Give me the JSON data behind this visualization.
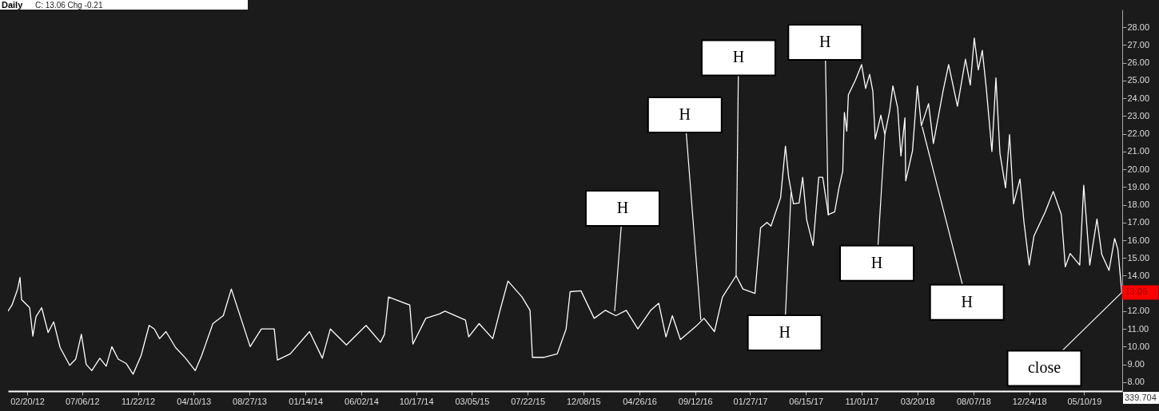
{
  "chart_data": {
    "type": "line",
    "title": "Daily",
    "subtitle": "C: 13.06  Chg -0.21",
    "x": [
      "2012-01-03",
      "2012-01-13",
      "2012-01-27",
      "2012-02-02",
      "2012-02-06",
      "2012-02-26",
      "2012-03-05",
      "2012-03-13",
      "2012-03-27",
      "2012-04-12",
      "2012-04-26",
      "2012-05-12",
      "2012-06-05",
      "2012-06-20",
      "2012-07-04",
      "2012-07-16",
      "2012-07-30",
      "2012-08-19",
      "2012-09-04",
      "2012-09-18",
      "2012-10-04",
      "2012-10-24",
      "2012-11-10",
      "2012-11-30",
      "2012-12-20",
      "2013-01-02",
      "2013-01-15",
      "2013-01-31",
      "2013-02-24",
      "2013-03-21",
      "2013-04-14",
      "2013-04-30",
      "2013-05-28",
      "2013-06-23",
      "2013-07-13",
      "2013-08-06",
      "2013-08-29",
      "2013-09-26",
      "2013-10-28",
      "2013-11-05",
      "2013-12-07",
      "2014-01-24",
      "2014-02-25",
      "2014-03-17",
      "2014-04-26",
      "2014-06-14",
      "2014-07-20",
      "2014-07-30",
      "2014-08-09",
      "2014-10-01",
      "2014-10-09",
      "2014-11-10",
      "2014-12-14",
      "2014-12-28",
      "2015-02-17",
      "2015-02-25",
      "2015-03-23",
      "2015-04-26",
      "2015-05-16",
      "2015-06-03",
      "2015-07-08",
      "2015-07-28",
      "2015-08-03",
      "2015-08-31",
      "2015-10-04",
      "2015-10-26",
      "2015-11-05",
      "2015-12-02",
      "2016-01-04",
      "2016-02-01",
      "2016-02-27",
      "2016-03-24",
      "2016-04-22",
      "2016-05-24",
      "2016-06-13",
      "2016-07-01",
      "2016-07-17",
      "2016-08-06",
      "2016-09-14",
      "2016-10-04",
      "2016-10-30",
      "2016-11-19",
      "2016-12-23",
      "2017-01-09",
      "2017-02-08",
      "2017-02-22",
      "2017-03-10",
      "2017-03-20",
      "2017-04-13",
      "2017-04-25",
      "2017-05-03",
      "2017-05-15",
      "2017-05-29",
      "2017-06-07",
      "2017-06-17",
      "2017-07-03",
      "2017-07-17",
      "2017-07-27",
      "2017-08-10",
      "2017-08-26",
      "2017-09-05",
      "2017-09-15",
      "2017-09-19",
      "2017-09-25",
      "2017-09-29",
      "2017-10-16",
      "2017-11-01",
      "2017-11-11",
      "2017-11-21",
      "2017-11-29",
      "2017-12-05",
      "2017-12-19",
      "2017-12-29",
      "2018-01-10",
      "2018-01-18",
      "2018-01-30",
      "2018-02-07",
      "2018-02-17",
      "2018-02-19",
      "2018-03-08",
      "2018-03-20",
      "2018-03-30",
      "2018-04-17",
      "2018-04-29",
      "2018-05-23",
      "2018-06-06",
      "2018-06-28",
      "2018-07-18",
      "2018-07-30",
      "2018-08-09",
      "2018-08-19",
      "2018-08-29",
      "2018-09-08",
      "2018-09-22",
      "2018-10-02",
      "2018-10-12",
      "2018-10-26",
      "2018-11-05",
      "2018-11-15",
      "2018-12-01",
      "2018-12-11",
      "2018-12-24",
      "2019-01-05",
      "2019-02-02",
      "2019-02-22",
      "2019-03-14",
      "2019-03-24",
      "2019-04-05",
      "2019-04-29",
      "2019-05-09",
      "2019-05-24",
      "2019-06-11",
      "2019-06-23",
      "2019-07-11",
      "2019-07-25",
      "2019-08-02",
      "2019-08-12"
    ],
    "series": [
      {
        "color": "#ffffff",
        "values": [
          12.0,
          12.35,
          13.25,
          13.9,
          12.65,
          12.2,
          10.6,
          11.7,
          12.2,
          10.8,
          11.4,
          9.95,
          8.95,
          9.3,
          10.7,
          9.0,
          8.65,
          9.35,
          8.9,
          10.0,
          9.3,
          9.05,
          8.45,
          9.5,
          11.2,
          11.0,
          10.45,
          10.85,
          9.95,
          9.35,
          8.65,
          9.5,
          11.3,
          11.75,
          13.25,
          11.6,
          10.0,
          11.0,
          11.0,
          9.25,
          9.6,
          10.85,
          9.35,
          11.0,
          10.1,
          11.2,
          10.25,
          10.7,
          12.8,
          12.35,
          10.15,
          11.6,
          11.85,
          12.0,
          11.5,
          10.55,
          11.3,
          10.45,
          12.2,
          13.7,
          12.8,
          12.05,
          9.4,
          9.4,
          9.6,
          11.0,
          13.1,
          13.15,
          11.6,
          12.05,
          11.75,
          12.05,
          11.0,
          12.05,
          12.45,
          10.55,
          11.75,
          10.4,
          11.15,
          11.6,
          10.85,
          12.8,
          14.0,
          13.25,
          13.0,
          16.7,
          17.0,
          16.8,
          18.4,
          21.3,
          19.55,
          18.05,
          18.1,
          19.55,
          17.15,
          15.7,
          19.55,
          19.55,
          17.45,
          17.6,
          18.9,
          19.9,
          23.2,
          22.15,
          24.2,
          25.0,
          25.9,
          24.55,
          25.35,
          24.4,
          21.7,
          23.05,
          21.95,
          23.3,
          24.7,
          23.45,
          20.75,
          22.9,
          19.35,
          21.05,
          24.7,
          22.45,
          23.7,
          21.45,
          24.4,
          25.9,
          23.55,
          26.2,
          24.75,
          27.4,
          25.6,
          26.7,
          24.55,
          21.0,
          25.15,
          20.9,
          18.95,
          21.95,
          18.05,
          19.45,
          17.0,
          14.6,
          16.25,
          17.6,
          18.75,
          17.45,
          14.5,
          15.25,
          14.6,
          19.1,
          14.6,
          17.2,
          15.2,
          14.3,
          16.1,
          15.5,
          13.06
        ]
      }
    ],
    "xlim": [
      "2012-01-03",
      "2019-08-13"
    ],
    "ylim": [
      7.5,
      29
    ],
    "xticks": [
      {
        "value": "2012-02-20",
        "label": "02/20/12"
      },
      {
        "value": "2012-07-06",
        "label": "07/06/12"
      },
      {
        "value": "2012-11-22",
        "label": "11/22/12"
      },
      {
        "value": "2013-04-10",
        "label": "04/10/13"
      },
      {
        "value": "2013-08-27",
        "label": "08/27/13"
      },
      {
        "value": "2014-01-14",
        "label": "01/14/14"
      },
      {
        "value": "2014-06-02",
        "label": "06/02/14"
      },
      {
        "value": "2014-10-17",
        "label": "10/17/14"
      },
      {
        "value": "2015-03-05",
        "label": "03/05/15"
      },
      {
        "value": "2015-07-22",
        "label": "07/22/15"
      },
      {
        "value": "2015-12-08",
        "label": "12/08/15"
      },
      {
        "value": "2016-04-26",
        "label": "04/26/16"
      },
      {
        "value": "2016-09-12",
        "label": "09/12/16"
      },
      {
        "value": "2017-01-27",
        "label": "01/27/17"
      },
      {
        "value": "2017-06-15",
        "label": "06/15/17"
      },
      {
        "value": "2017-11-01",
        "label": "11/01/17"
      },
      {
        "value": "2018-03-20",
        "label": "03/20/18"
      },
      {
        "value": "2018-08-07",
        "label": "08/07/18"
      },
      {
        "value": "2018-12-24",
        "label": "12/24/18"
      },
      {
        "value": "2019-05-10",
        "label": "05/10/19"
      }
    ],
    "yticks": [
      {
        "value": 8,
        "label": "8.00"
      },
      {
        "value": 9,
        "label": "9.00"
      },
      {
        "value": 10,
        "label": "10.00"
      },
      {
        "value": 11,
        "label": "11.00"
      },
      {
        "value": 12,
        "label": "12.00"
      },
      {
        "value": 13,
        "label": null
      },
      {
        "value": 14,
        "label": "14.00"
      },
      {
        "value": 15,
        "label": "15.00"
      },
      {
        "value": 16,
        "label": "16.00"
      },
      {
        "value": 17,
        "label": "17.00"
      },
      {
        "value": 18,
        "label": "18.00"
      },
      {
        "value": 19,
        "label": "19.00"
      },
      {
        "value": 20,
        "label": "20.00"
      },
      {
        "value": 21,
        "label": "21.00"
      },
      {
        "value": 22,
        "label": "22.00"
      },
      {
        "value": 23,
        "label": "23.00"
      },
      {
        "value": 24,
        "label": "24.00"
      },
      {
        "value": 25,
        "label": "25.00"
      },
      {
        "value": 26,
        "label": "26.00"
      },
      {
        "value": 27,
        "label": "27.00"
      },
      {
        "value": 28,
        "label": "28.00"
      }
    ],
    "annotations": [
      {
        "text": "H",
        "x": "2016-02-24",
        "y": 12.0
      },
      {
        "text": "H",
        "x": "2016-09-26",
        "y": 11.5
      },
      {
        "text": "H",
        "x": "2016-12-23",
        "y": 14.0
      },
      {
        "text": "H",
        "x": "2017-05-09",
        "y": 18.7
      },
      {
        "text": "H",
        "x": "2017-08-10",
        "y": 17.4
      },
      {
        "text": "H",
        "x": "2017-12-29",
        "y": 21.95
      },
      {
        "text": "H",
        "x": "2018-04-01",
        "y": 22.4
      },
      {
        "text": "close",
        "x": "2019-08-12",
        "y": 13.06
      },
      {
        "text": "13.06",
        "x": "2019-08-12",
        "y": 13.06
      },
      "339.704"
    ]
  }
}
